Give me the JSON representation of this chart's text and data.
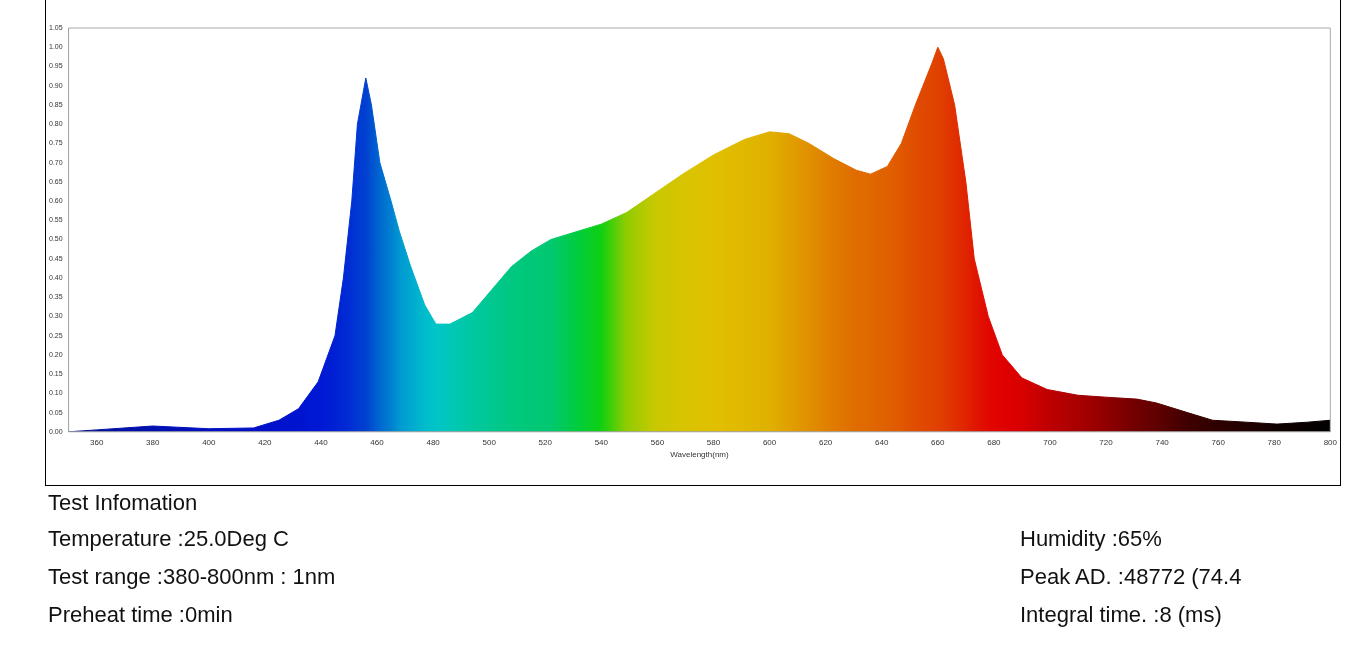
{
  "chart_data": {
    "type": "area",
    "xlabel": "Wavelength(nm)",
    "xlim": [
      350,
      800
    ],
    "xticks": [
      360,
      380,
      400,
      420,
      440,
      460,
      480,
      500,
      520,
      540,
      560,
      580,
      600,
      620,
      640,
      660,
      680,
      700,
      720,
      740,
      760,
      780,
      800
    ],
    "ylim": [
      0,
      1.05
    ],
    "yticks": [
      {
        "value": 0,
        "label": "0.00"
      },
      {
        "value": 0.05,
        "label": "0.05"
      },
      {
        "value": 0.1,
        "label": "0.10"
      },
      {
        "value": 0.15,
        "label": "0.15"
      },
      {
        "value": 0.2,
        "label": "0.20"
      },
      {
        "value": 0.25,
        "label": "0.25"
      },
      {
        "value": 0.3,
        "label": "0.30"
      },
      {
        "value": 0.35,
        "label": "0.35"
      },
      {
        "value": 0.4,
        "label": "0.40"
      },
      {
        "value": 0.45,
        "label": "0.45"
      },
      {
        "value": 0.5,
        "label": "0.50"
      },
      {
        "value": 0.55,
        "label": "0.55"
      },
      {
        "value": 0.6,
        "label": "0.60"
      },
      {
        "value": 0.65,
        "label": "0.65"
      },
      {
        "value": 0.7,
        "label": "0.70"
      },
      {
        "value": 0.75,
        "label": "0.75"
      },
      {
        "value": 0.8,
        "label": "0.80"
      },
      {
        "value": 0.85,
        "label": "0.85"
      },
      {
        "value": 0.9,
        "label": "0.90"
      },
      {
        "value": 0.95,
        "label": "0.95"
      },
      {
        "value": 1,
        "label": "1.00"
      },
      {
        "value": 1.05,
        "label": "1.05"
      }
    ],
    "grid": false,
    "legend": false,
    "marker": "none",
    "series": [
      {
        "x": [
          350,
          360,
          380,
          400,
          416,
          425,
          432,
          439,
          445,
          448,
          451,
          453,
          456,
          458,
          461,
          465,
          468,
          472,
          477,
          481,
          486,
          494,
          501,
          508,
          515,
          522,
          531,
          540,
          549,
          559,
          569,
          580,
          591,
          600,
          607,
          614,
          623,
          631,
          636,
          642,
          647,
          652,
          658,
          660,
          662,
          666,
          670,
          673,
          678,
          683,
          690,
          699,
          710,
          720,
          731,
          738,
          749,
          758,
          770,
          781,
          792,
          800
        ],
        "values": [
          0.0,
          0.005,
          0.015,
          0.008,
          0.01,
          0.03,
          0.06,
          0.13,
          0.25,
          0.4,
          0.6,
          0.8,
          0.92,
          0.85,
          0.7,
          0.6,
          0.52,
          0.43,
          0.33,
          0.28,
          0.28,
          0.31,
          0.37,
          0.43,
          0.47,
          0.5,
          0.52,
          0.54,
          0.57,
          0.62,
          0.67,
          0.72,
          0.76,
          0.78,
          0.775,
          0.75,
          0.71,
          0.68,
          0.67,
          0.69,
          0.75,
          0.85,
          0.96,
          1.0,
          0.97,
          0.85,
          0.65,
          0.45,
          0.3,
          0.2,
          0.14,
          0.11,
          0.095,
          0.09,
          0.085,
          0.075,
          0.05,
          0.03,
          0.025,
          0.02,
          0.025,
          0.03
        ],
        "colors": [
          "#000c90",
          "#0010a0",
          "#0010b0",
          "#0010c0",
          "#0010c8",
          "#0012cc",
          "#0014d0",
          "#0018d4",
          "#0020d4",
          "#0028d4",
          "#0030d4",
          "#0038d4",
          "#0040d0",
          "#0050d0",
          "#0068d0",
          "#0080d0",
          "#0098d0",
          "#00a8d0",
          "#00bccc",
          "#00c4c8",
          "#00c8b8",
          "#00c8a0",
          "#00c890",
          "#00c880",
          "#00c878",
          "#00c870",
          "#00cc40",
          "#10d010",
          "#90cc00",
          "#c8c800",
          "#d8c400",
          "#e0c000",
          "#e0b800",
          "#e0b000",
          "#e0a000",
          "#e09000",
          "#e07a00",
          "#e06c00",
          "#e06800",
          "#e06000",
          "#e05800",
          "#e04c00",
          "#e04400",
          "#e04000",
          "#e03c00",
          "#e03000",
          "#e02400",
          "#e01800",
          "#e00800",
          "#e00000",
          "#d80000",
          "#c00000",
          "#a80000",
          "#900000",
          "#700000",
          "#600000",
          "#400000",
          "#300000",
          "#200000",
          "#100000",
          "#080000",
          "#000000"
        ]
      }
    ],
    "annotations": [
      "Test Infomation",
      "Temperature :25.0Deg C",
      "Humidity :65%",
      "Test range :380-800nm : 1nm",
      "Peak AD. :48772 (74.4",
      "Preheat time :0min",
      "Integral time. :8 (ms)"
    ]
  }
}
